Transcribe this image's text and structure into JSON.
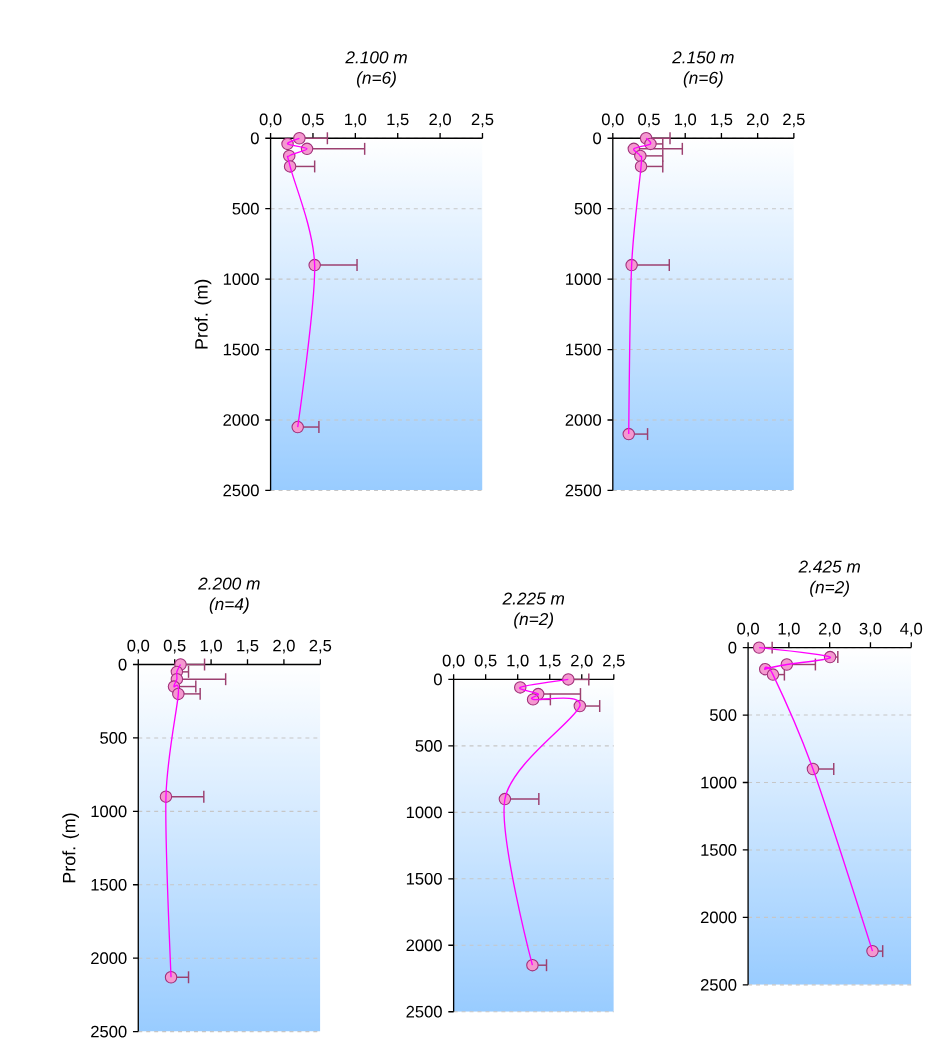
{
  "chart_data": [
    {
      "type": "line",
      "title": "2.100 m",
      "subtitle": "(n=6)",
      "ylabel": "Prof. (m)",
      "x": [
        0.34,
        0.2,
        0.43,
        0.22,
        0.23,
        0.52,
        0.32
      ],
      "values": [
        0,
        40,
        75,
        125,
        200,
        900,
        2050
      ],
      "xerrors": [
        [
          0.34,
          0.67
        ],
        null,
        [
          0.43,
          1.11
        ],
        null,
        [
          0.23,
          0.52
        ],
        [
          0.52,
          1.02
        ],
        [
          0.32,
          0.57
        ]
      ],
      "color": "#ff00ff",
      "marker": "circle",
      "xlim": [
        0,
        2.5
      ],
      "xticks": [
        {
          "value": 0,
          "label": "0,0"
        },
        {
          "value": 0.5,
          "label": "0,5"
        },
        {
          "value": 1,
          "label": "1,0"
        },
        {
          "value": 1.5,
          "label": "1,5"
        },
        {
          "value": 2,
          "label": "2,0"
        },
        {
          "value": 2.5,
          "label": "2,5"
        }
      ],
      "ylim": [
        2500,
        0
      ],
      "yticks": [
        0,
        500,
        1000,
        1500,
        2000,
        2500
      ],
      "grid": "y"
    },
    {
      "type": "line",
      "title": "2.150 m",
      "subtitle": "(n=6)",
      "x": [
        0.46,
        0.52,
        0.29,
        0.38,
        0.39,
        0.26,
        0.22
      ],
      "values": [
        0,
        40,
        75,
        125,
        200,
        900,
        2100
      ],
      "xerrors": [
        [
          0.46,
          0.79
        ],
        [
          0.52,
          0.69
        ],
        [
          0.29,
          0.96
        ],
        [
          0.38,
          0.69
        ],
        [
          0.39,
          0.69
        ],
        [
          0.26,
          0.78
        ],
        [
          0.22,
          0.48
        ]
      ],
      "color": "#ff00ff",
      "marker": "circle",
      "xlim": [
        0,
        2.5
      ],
      "xticks": [
        {
          "value": 0,
          "label": "0,0"
        },
        {
          "value": 0.5,
          "label": "0,5"
        },
        {
          "value": 1,
          "label": "1,0"
        },
        {
          "value": 1.5,
          "label": "1,5"
        },
        {
          "value": 2,
          "label": "2,0"
        },
        {
          "value": 2.5,
          "label": "2,5"
        }
      ],
      "ylim": [
        2500,
        0
      ],
      "yticks": [
        0,
        500,
        1000,
        1500,
        2000,
        2500
      ],
      "grid": "y"
    },
    {
      "type": "line",
      "title": "2.200 m",
      "subtitle": "(n=4)",
      "ylabel": "Prof. (m)",
      "x": [
        0.58,
        0.53,
        0.53,
        0.49,
        0.55,
        0.38,
        0.45
      ],
      "values": [
        0,
        50,
        100,
        150,
        200,
        900,
        2130
      ],
      "xerrors": [
        [
          0.58,
          0.91
        ],
        [
          0.53,
          0.69
        ],
        [
          0.53,
          1.2
        ],
        [
          0.49,
          0.79
        ],
        [
          0.55,
          0.85
        ],
        [
          0.38,
          0.9
        ],
        [
          0.45,
          0.69
        ]
      ],
      "color": "#ff00ff",
      "marker": "circle",
      "xlim": [
        0,
        2.5
      ],
      "xticks": [
        {
          "value": 0,
          "label": "0,0"
        },
        {
          "value": 0.5,
          "label": "0,5"
        },
        {
          "value": 1,
          "label": "1,0"
        },
        {
          "value": 1.5,
          "label": "1,5"
        },
        {
          "value": 2,
          "label": "2,0"
        },
        {
          "value": 2.5,
          "label": "2,5"
        }
      ],
      "ylim": [
        2500,
        0
      ],
      "yticks": [
        0,
        500,
        1000,
        1500,
        2000,
        2500
      ],
      "grid": "y"
    },
    {
      "type": "line",
      "title": "2.225 m",
      "subtitle": "(n=2)",
      "x": [
        1.79,
        1.04,
        1.32,
        1.24,
        1.97,
        0.8,
        1.23
      ],
      "values": [
        0,
        60,
        110,
        150,
        200,
        900,
        2150
      ],
      "xerrors": [
        [
          1.79,
          2.11
        ],
        null,
        [
          1.32,
          1.98
        ],
        [
          1.24,
          1.51
        ],
        [
          1.97,
          2.28
        ],
        [
          0.8,
          1.33
        ],
        [
          1.23,
          1.45
        ]
      ],
      "color": "#ff00ff",
      "marker": "circle",
      "xlim": [
        0,
        2.5
      ],
      "xticks": [
        {
          "value": 0,
          "label": "0,0"
        },
        {
          "value": 0.5,
          "label": "0,5"
        },
        {
          "value": 1,
          "label": "1,0"
        },
        {
          "value": 1.5,
          "label": "1,5"
        },
        {
          "value": 2,
          "label": "2,0"
        },
        {
          "value": 2.5,
          "label": "2,5"
        }
      ],
      "ylim": [
        2500,
        0
      ],
      "yticks": [
        0,
        500,
        1000,
        1500,
        2000,
        2500
      ],
      "grid": "y"
    },
    {
      "type": "line",
      "title": "2.425 m",
      "subtitle": "(n=2)",
      "x": [
        0.27,
        2.01,
        0.95,
        0.42,
        0.61,
        1.59,
        3.05
      ],
      "values": [
        0,
        70,
        125,
        160,
        200,
        900,
        2250
      ],
      "xerrors": [
        [
          0.27,
          0.59
        ],
        [
          2.01,
          2.2
        ],
        [
          0.95,
          1.65
        ],
        null,
        [
          0.61,
          0.89
        ],
        [
          1.59,
          2.1
        ],
        [
          3.05,
          3.3
        ]
      ],
      "color": "#ff00ff",
      "marker": "circle",
      "xlim": [
        0,
        4
      ],
      "xticks": [
        {
          "value": 0,
          "label": "0,0"
        },
        {
          "value": 1,
          "label": "1,0"
        },
        {
          "value": 2,
          "label": "2,0"
        },
        {
          "value": 3,
          "label": "3,0"
        },
        {
          "value": 4,
          "label": "4,0"
        }
      ],
      "ylim": [
        2500,
        0
      ],
      "yticks": [
        0,
        500,
        1000,
        1500,
        2000,
        2500
      ],
      "grid": "y"
    }
  ]
}
